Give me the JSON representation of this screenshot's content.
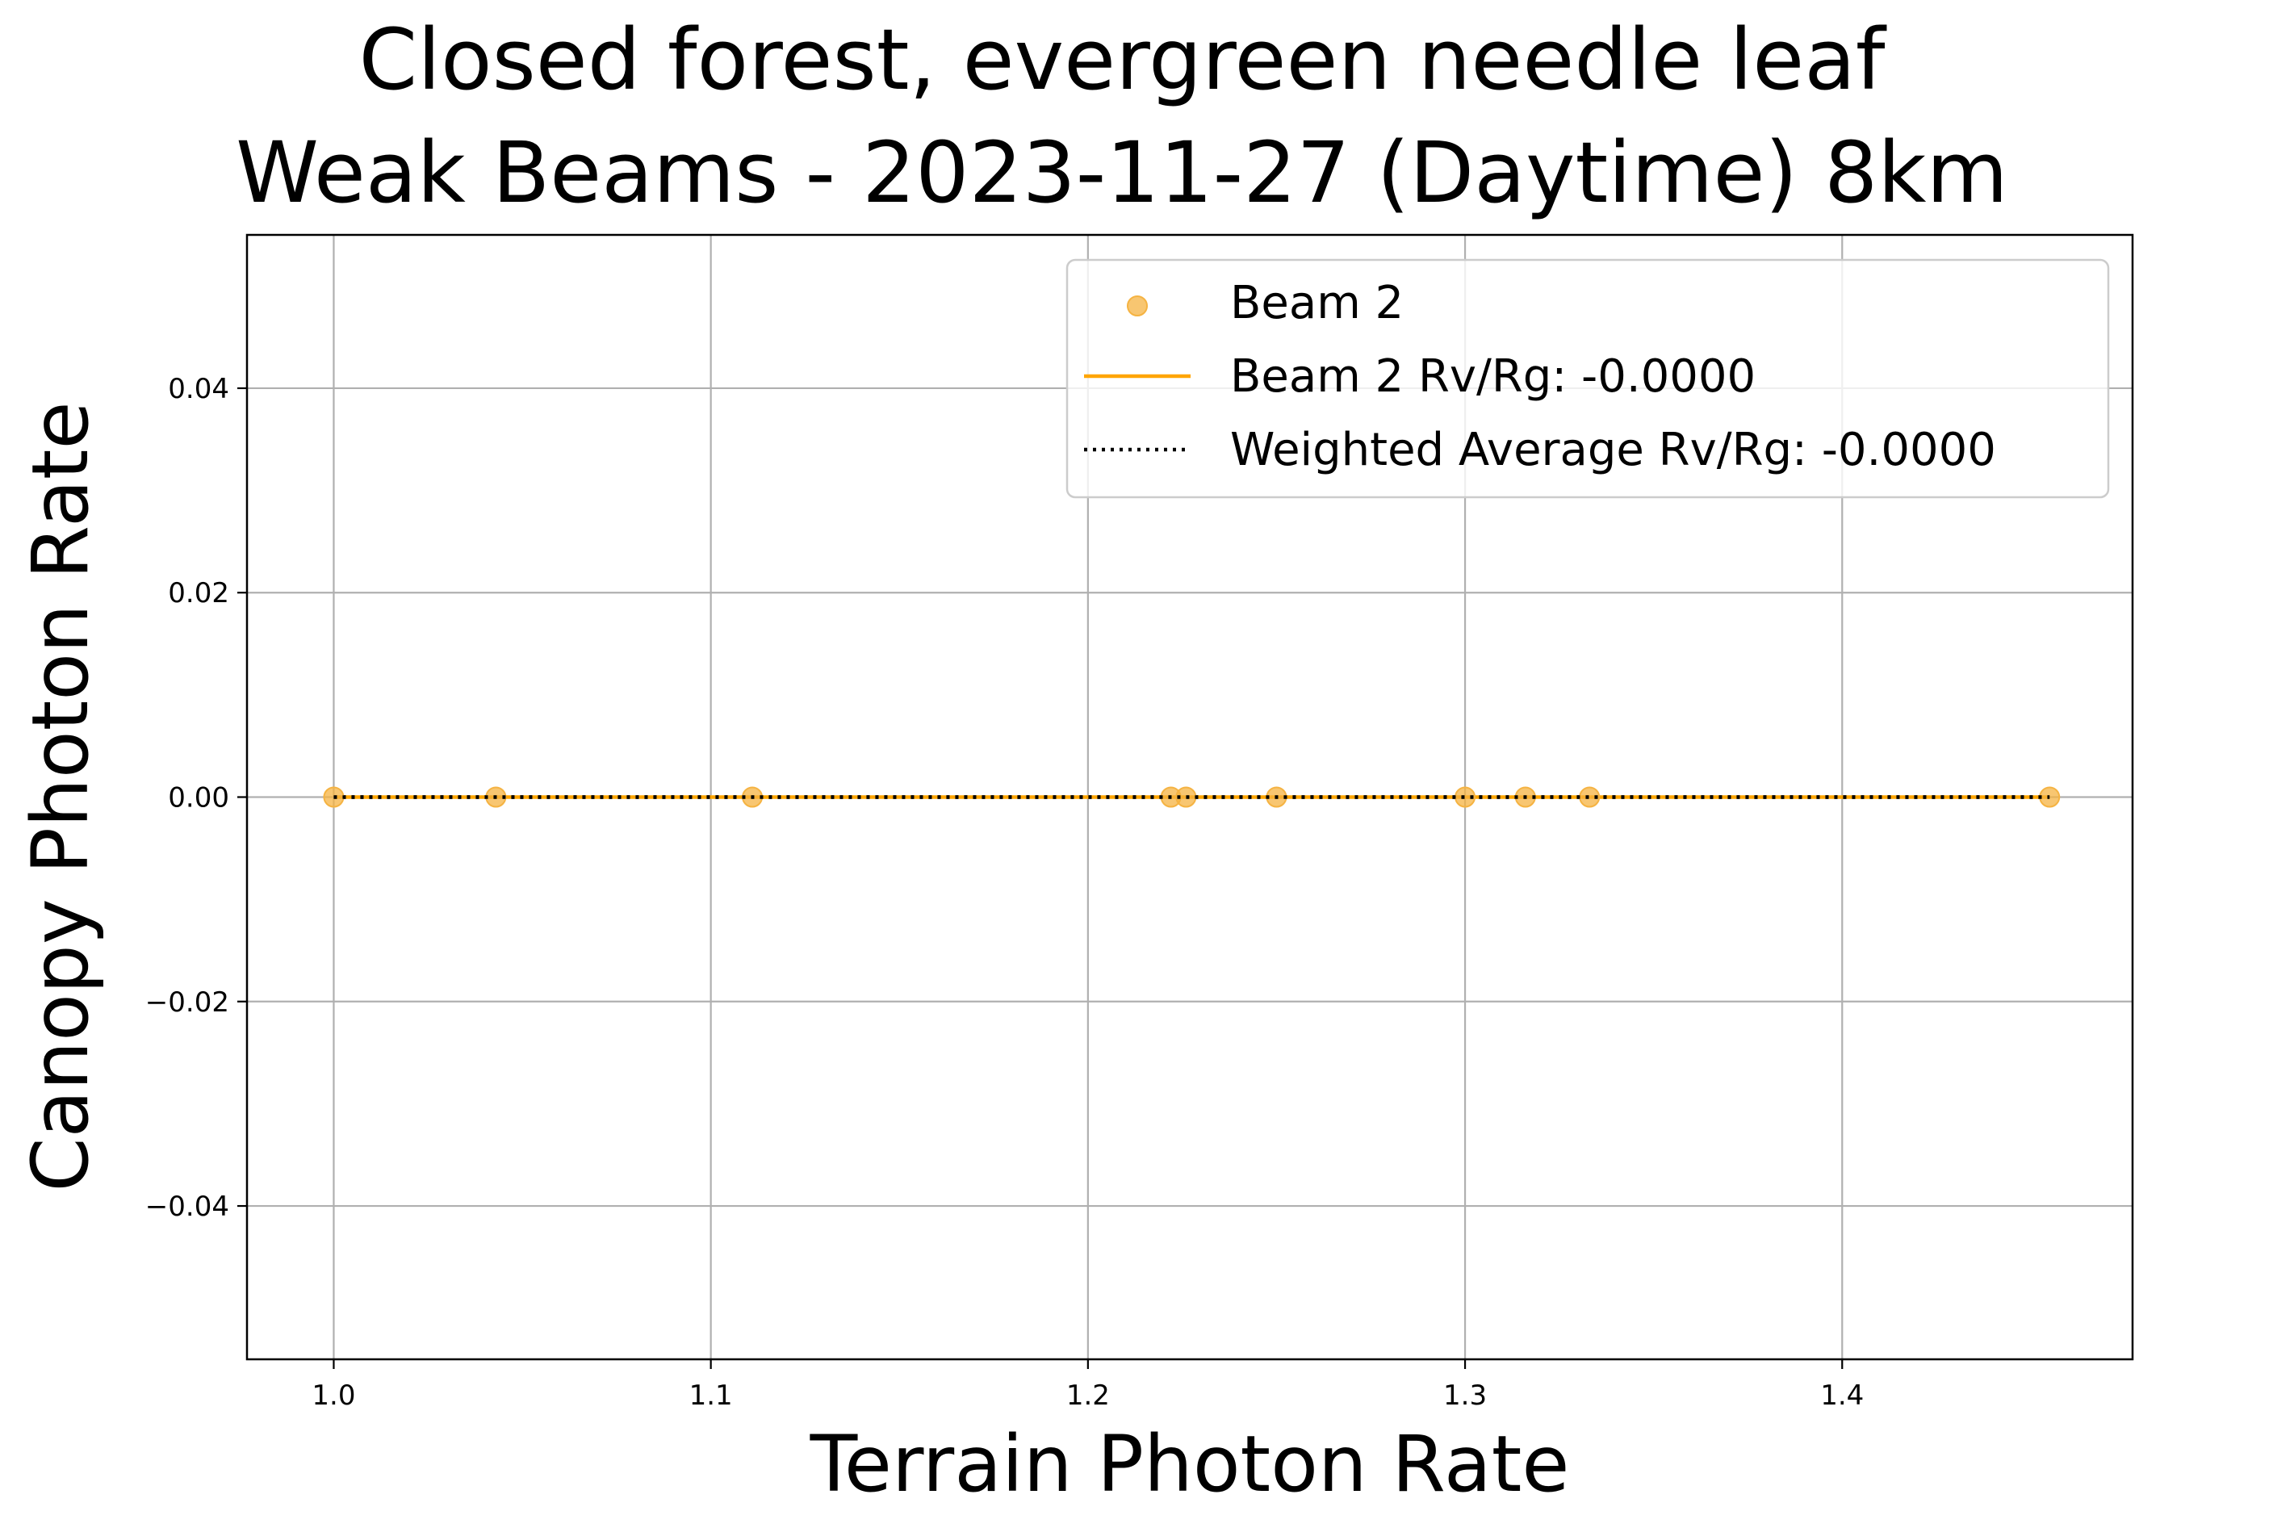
{
  "chart_data": {
    "type": "scatter",
    "title": [
      "Closed forest, evergreen needle leaf",
      "Weak Beams - 2023-11-27 (Daytime) 8km"
    ],
    "xlabel": "Terrain Photon Rate",
    "ylabel": "Canopy Photon Rate",
    "xlim": [
      0.977,
      1.477
    ],
    "ylim": [
      -0.055,
      0.055
    ],
    "xticks": [
      1.0,
      1.1,
      1.2,
      1.3,
      1.4
    ],
    "xtick_labels": [
      "1.0",
      "1.1",
      "1.2",
      "1.3",
      "1.4"
    ],
    "yticks": [
      0.04,
      0.02,
      0.0,
      -0.02,
      -0.04
    ],
    "ytick_labels": [
      "0.04",
      "0.02",
      "0.00",
      "−0.02",
      "−0.04"
    ],
    "grid": true,
    "legend_position": "top-right",
    "series": [
      {
        "name": "Beam 2",
        "kind": "scatter",
        "color": "#f5b342",
        "x": [
          1.0,
          1.043,
          1.111,
          1.222,
          1.226,
          1.25,
          1.3,
          1.316,
          1.333,
          1.455
        ],
        "y": [
          0,
          0,
          0,
          0,
          0,
          0,
          0,
          0,
          0,
          0
        ]
      },
      {
        "name": "Beam 2 Rv/Rg: -0.0000",
        "kind": "line",
        "style": "solid",
        "color": "#ffa500",
        "x": [
          1.0,
          1.455
        ],
        "y": [
          0,
          0
        ]
      },
      {
        "name": "Weighted Average Rv/Rg: -0.0000",
        "kind": "line",
        "style": "dotted",
        "color": "#000000",
        "x": [
          1.0,
          1.455
        ],
        "y": [
          0,
          0
        ]
      }
    ]
  }
}
